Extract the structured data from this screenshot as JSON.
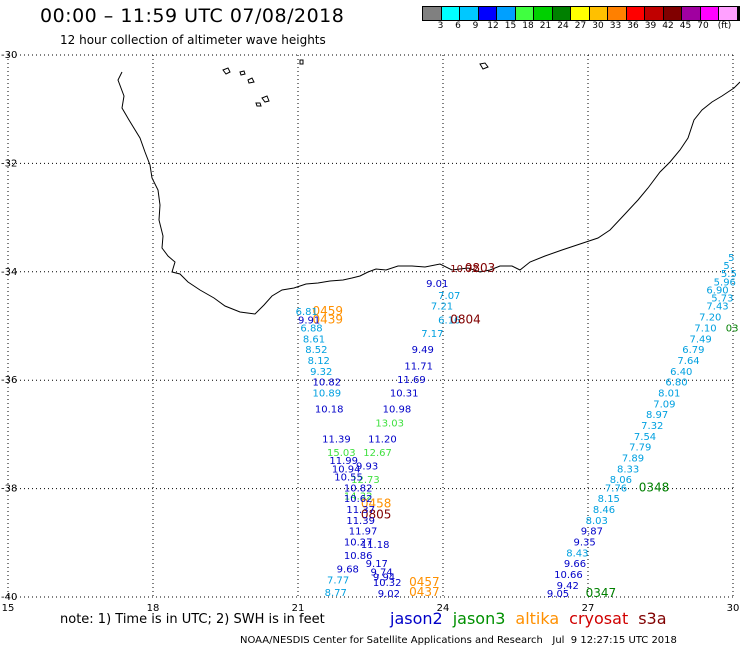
{
  "header": {
    "title": "00:00 – 11:59 UTC 07/08/2018",
    "subtitle": "12 hour collection of altimeter wave heights"
  },
  "color_scale": {
    "colors": [
      "#808080",
      "#00ffff",
      "#00c8ff",
      "#0000ff",
      "#00a0ff",
      "#40ff40",
      "#00d000",
      "#008000",
      "#ffff00",
      "#ffc000",
      "#ff8000",
      "#ff0000",
      "#c00000",
      "#800000",
      "#a000a0",
      "#ff00ff",
      "#ffa0ff",
      "#000000"
    ],
    "labels": [
      "3",
      "6",
      "9",
      "12",
      "15",
      "18",
      "21",
      "24",
      "27",
      "30",
      "33",
      "36",
      "39",
      "42",
      "45",
      "70",
      "(ft)"
    ]
  },
  "axes": {
    "lon_ticks": [
      "15",
      "18",
      "21",
      "24",
      "27",
      "30"
    ],
    "lat_ticks": [
      "-30",
      "-32",
      "-34",
      "-36",
      "-38",
      "-40"
    ]
  },
  "satellites": [
    {
      "name": "jason2",
      "color": "#0000c8"
    },
    {
      "name": "jason3",
      "color": "#009000"
    },
    {
      "name": "altika",
      "color": "#ff9000"
    },
    {
      "name": "cryosat",
      "color": "#d00000"
    },
    {
      "name": "s3a",
      "color": "#800000"
    }
  ],
  "note": "note: 1) Time is in UTC; 2) SWH is in feet",
  "credit": "NOAA/NESDIS Center for Satellite Applications and Research   Jul  9 12:27:15 UTC 2018",
  "observations": [
    {
      "text": "10.72",
      "lon": 24.15,
      "lat": -34.0,
      "color": "#800000"
    },
    {
      "text": "0803",
      "lon": 24.45,
      "lat": -34.0,
      "color": "#800000"
    },
    {
      "text": "9.01",
      "lon": 23.65,
      "lat": -34.28,
      "color": "#0000c8"
    },
    {
      "text": "7.07",
      "lon": 23.9,
      "lat": -34.5,
      "color": "#00a0e0"
    },
    {
      "text": "7.21",
      "lon": 23.75,
      "lat": -34.7,
      "color": "#00a0e0"
    },
    {
      "text": "6.16",
      "lon": 23.9,
      "lat": -34.95,
      "color": "#00a0e0"
    },
    {
      "text": "0804",
      "lon": 24.15,
      "lat": -34.95,
      "color": "#800000"
    },
    {
      "text": "7.17",
      "lon": 23.55,
      "lat": -35.2,
      "color": "#00a0e0"
    },
    {
      "text": "9.49",
      "lon": 23.35,
      "lat": -35.5,
      "color": "#0000c8"
    },
    {
      "text": "11.71",
      "lon": 23.2,
      "lat": -35.8,
      "color": "#0000c8"
    },
    {
      "text": "11.69",
      "lon": 23.05,
      "lat": -36.05,
      "color": "#0000c8"
    },
    {
      "text": "10.31",
      "lon": 22.9,
      "lat": -36.3,
      "color": "#0000c8"
    },
    {
      "text": "10.98",
      "lon": 22.75,
      "lat": -36.6,
      "color": "#0000c8"
    },
    {
      "text": "13.03",
      "lon": 22.6,
      "lat": -36.85,
      "color": "#40e040"
    },
    {
      "text": "11.20",
      "lon": 22.45,
      "lat": -37.15,
      "color": "#0000c8"
    },
    {
      "text": "12.67",
      "lon": 22.35,
      "lat": -37.4,
      "color": "#40e040"
    },
    {
      "text": "9.93",
      "lon": 22.2,
      "lat": -37.65,
      "color": "#0000c8"
    },
    {
      "text": "12.73",
      "lon": 22.1,
      "lat": -37.9,
      "color": "#40e040"
    },
    {
      "text": "14.32",
      "lon": 21.95,
      "lat": -38.2,
      "color": "#40e040"
    },
    {
      "text": "0459",
      "lon": 21.3,
      "lat": -34.8,
      "color": "#ff9000"
    },
    {
      "text": "0439",
      "lon": 21.3,
      "lat": -34.95,
      "color": "#ff9000"
    },
    {
      "text": "0458",
      "lon": 22.3,
      "lat": -38.35,
      "color": "#ff9000"
    },
    {
      "text": "0805",
      "lon": 22.3,
      "lat": -38.55,
      "color": "#800000"
    },
    {
      "text": "0457",
      "lon": 23.3,
      "lat": -39.8,
      "color": "#ff9000"
    },
    {
      "text": "0437",
      "lon": 23.3,
      "lat": -39.98,
      "color": "#ff9000"
    },
    {
      "text": "6.81",
      "lon": 20.95,
      "lat": -34.8,
      "color": "#00a0e0"
    },
    {
      "text": "9.91",
      "lon": 21.0,
      "lat": -34.95,
      "color": "#0000c8"
    },
    {
      "text": "6.88",
      "lon": 21.05,
      "lat": -35.1,
      "color": "#00a0e0"
    },
    {
      "text": "8.61",
      "lon": 21.1,
      "lat": -35.3,
      "color": "#00a0e0"
    },
    {
      "text": "8.52",
      "lon": 21.15,
      "lat": -35.5,
      "color": "#00a0e0"
    },
    {
      "text": "8.12",
      "lon": 21.2,
      "lat": -35.7,
      "color": "#00a0e0"
    },
    {
      "text": "9.32",
      "lon": 21.25,
      "lat": -35.9,
      "color": "#00a0e0"
    },
    {
      "text": "10.82",
      "lon": 21.3,
      "lat": -36.1,
      "color": "#0000c8"
    },
    {
      "text": "10.89",
      "lon": 21.3,
      "lat": -36.3,
      "color": "#00a0e0"
    },
    {
      "text": "10.18",
      "lon": 21.35,
      "lat": -36.6,
      "color": "#0000c8"
    },
    {
      "text": "11.39",
      "lon": 21.5,
      "lat": -37.15,
      "color": "#0000c8"
    },
    {
      "text": "15.03",
      "lon": 21.6,
      "lat": -37.4,
      "color": "#40e040"
    },
    {
      "text": "11.99",
      "lon": 21.65,
      "lat": -37.55,
      "color": "#0000c8"
    },
    {
      "text": "10.94",
      "lon": 21.7,
      "lat": -37.7,
      "color": "#0000c8"
    },
    {
      "text": "10.55",
      "lon": 21.75,
      "lat": -37.85,
      "color": "#0000c8"
    },
    {
      "text": "10.82",
      "lon": 21.95,
      "lat": -38.05,
      "color": "#0000c8"
    },
    {
      "text": "10.62",
      "lon": 21.95,
      "lat": -38.25,
      "color": "#0000c8"
    },
    {
      "text": "11.37",
      "lon": 22.0,
      "lat": -38.45,
      "color": "#0000c8"
    },
    {
      "text": "11.39",
      "lon": 22.0,
      "lat": -38.65,
      "color": "#0000c8"
    },
    {
      "text": "11.97",
      "lon": 22.05,
      "lat": -38.85,
      "color": "#0000c8"
    },
    {
      "text": "10.27",
      "lon": 21.95,
      "lat": -39.05,
      "color": "#0000c8"
    },
    {
      "text": "11.18",
      "lon": 22.3,
      "lat": -39.1,
      "color": "#0000c8"
    },
    {
      "text": "10.86",
      "lon": 21.95,
      "lat": -39.3,
      "color": "#0000c8"
    },
    {
      "text": "9.68",
      "lon": 21.8,
      "lat": -39.55,
      "color": "#0000c8"
    },
    {
      "text": "9.17",
      "lon": 22.4,
      "lat": -39.45,
      "color": "#0000c8"
    },
    {
      "text": "9.74",
      "lon": 22.5,
      "lat": -39.6,
      "color": "#0000c8"
    },
    {
      "text": "9.94",
      "lon": 22.55,
      "lat": -39.7,
      "color": "#0000c8"
    },
    {
      "text": "7.77",
      "lon": 21.6,
      "lat": -39.75,
      "color": "#00a0e0"
    },
    {
      "text": "10.32",
      "lon": 22.55,
      "lat": -39.8,
      "color": "#0000c8"
    },
    {
      "text": "8.77",
      "lon": 21.55,
      "lat": -39.98,
      "color": "#00a0e0"
    },
    {
      "text": "9.02",
      "lon": 22.65,
      "lat": -40.0,
      "color": "#0000c8"
    },
    {
      "text": "9.05",
      "lon": 26.15,
      "lat": -40.0,
      "color": "#0000c8"
    },
    {
      "text": "0347",
      "lon": 26.95,
      "lat": -40.0,
      "color": "#008000"
    },
    {
      "text": "9.42",
      "lon": 26.35,
      "lat": -39.85,
      "color": "#0000c8"
    },
    {
      "text": "10.66",
      "lon": 26.3,
      "lat": -39.65,
      "color": "#0000c8"
    },
    {
      "text": "9.66",
      "lon": 26.5,
      "lat": -39.45,
      "color": "#0000c8"
    },
    {
      "text": "8.43",
      "lon": 26.55,
      "lat": -39.25,
      "color": "#00a0e0"
    },
    {
      "text": "9.35",
      "lon": 26.7,
      "lat": -39.05,
      "color": "#0000c8"
    },
    {
      "text": "9.87",
      "lon": 26.85,
      "lat": -38.85,
      "color": "#0000c8"
    },
    {
      "text": "8.03",
      "lon": 26.95,
      "lat": -38.65,
      "color": "#00a0e0"
    },
    {
      "text": "8.46",
      "lon": 27.1,
      "lat": -38.45,
      "color": "#00a0e0"
    },
    {
      "text": "8.15",
      "lon": 27.2,
      "lat": -38.25,
      "color": "#00a0e0"
    },
    {
      "text": "7.76",
      "lon": 27.35,
      "lat": -38.05,
      "color": "#00a0e0"
    },
    {
      "text": "0348",
      "lon": 28.05,
      "lat": -38.05,
      "color": "#008000"
    },
    {
      "text": "8.06",
      "lon": 27.45,
      "lat": -37.9,
      "color": "#00a0e0"
    },
    {
      "text": "8.33",
      "lon": 27.6,
      "lat": -37.7,
      "color": "#00a0e0"
    },
    {
      "text": "7.89",
      "lon": 27.7,
      "lat": -37.5,
      "color": "#00a0e0"
    },
    {
      "text": "7.79",
      "lon": 27.85,
      "lat": -37.3,
      "color": "#00a0e0"
    },
    {
      "text": "7.54",
      "lon": 27.95,
      "lat": -37.1,
      "color": "#00a0e0"
    },
    {
      "text": "7.32",
      "lon": 28.1,
      "lat": -36.9,
      "color": "#00a0e0"
    },
    {
      "text": "8.97",
      "lon": 28.2,
      "lat": -36.7,
      "color": "#00a0e0"
    },
    {
      "text": "7.09",
      "lon": 28.35,
      "lat": -36.5,
      "color": "#00a0e0"
    },
    {
      "text": "8.01",
      "lon": 28.45,
      "lat": -36.3,
      "color": "#00a0e0"
    },
    {
      "text": "6.80",
      "lon": 28.6,
      "lat": -36.1,
      "color": "#00a0e0"
    },
    {
      "text": "6.40",
      "lon": 28.7,
      "lat": -35.9,
      "color": "#00a0e0"
    },
    {
      "text": "7.64",
      "lon": 28.85,
      "lat": -35.7,
      "color": "#00a0e0"
    },
    {
      "text": "6.79",
      "lon": 28.95,
      "lat": -35.5,
      "color": "#00a0e0"
    },
    {
      "text": "7.49",
      "lon": 29.1,
      "lat": -35.3,
      "color": "#00a0e0"
    },
    {
      "text": "7.10",
      "lon": 29.2,
      "lat": -35.1,
      "color": "#00a0e0"
    },
    {
      "text": "03",
      "lon": 29.85,
      "lat": -35.1,
      "color": "#008000"
    },
    {
      "text": "7.20",
      "lon": 29.3,
      "lat": -34.9,
      "color": "#00a0e0"
    },
    {
      "text": "7.43",
      "lon": 29.45,
      "lat": -34.7,
      "color": "#00a0e0"
    },
    {
      "text": "5.73",
      "lon": 29.55,
      "lat": -34.55,
      "color": "#00a0e0"
    },
    {
      "text": "6.90",
      "lon": 29.45,
      "lat": -34.4,
      "color": "#00a0e0"
    },
    {
      "text": "5.96",
      "lon": 29.6,
      "lat": -34.25,
      "color": "#00a0e0"
    },
    {
      "text": "5.5",
      "lon": 29.75,
      "lat": -34.1,
      "color": "#00a0e0"
    },
    {
      "text": "5.",
      "lon": 29.8,
      "lat": -33.95,
      "color": "#00a0e0"
    },
    {
      "text": "5",
      "lon": 29.9,
      "lat": -33.8,
      "color": "#00a0e0"
    }
  ]
}
